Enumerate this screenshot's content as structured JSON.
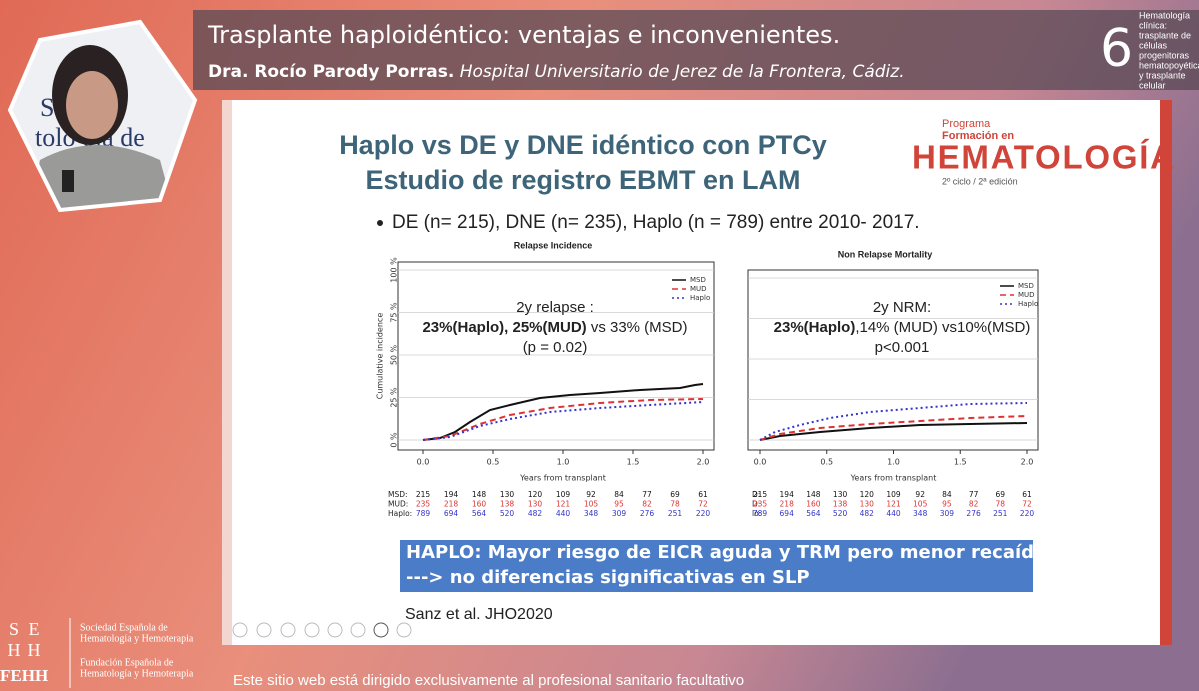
{
  "header": {
    "title": "Trasplante haploidéntico: ventajas e inconvenientes.",
    "speaker": "Dra. Rocío Parody Porras.",
    "affiliation": "Hospital Universitario de Jerez de la Frontera, Cádiz.",
    "badge_number": "6",
    "badge_text": [
      "Hematología",
      "clínica:",
      "trasplante de",
      "células",
      "progenitoras",
      "hematopoyéticas",
      "y trasplante",
      "celular"
    ]
  },
  "slide": {
    "title": [
      "Haplo vs DE y DNE idéntico con PTCy",
      "Estudio de registro EBMT en LAM"
    ],
    "logo": {
      "line1": "Programa",
      "line2": "Formación en",
      "brand": "HEMATOLOGÍA",
      "edition": "2º ciclo / 2ª edición"
    },
    "bullet": "DE (n= 215), DNE (n= 235),  Haplo (n = 789) entre 2010- 2017.",
    "panels": [
      {
        "title": "Relapse Incidence",
        "ylabel": "Cumulative incidence",
        "xlabel": "Years from transplant",
        "yticks": [
          "0 %",
          "25 %",
          "50 %",
          "75 %",
          "100 %"
        ],
        "xticks": [
          "0.0",
          "0.5",
          "1.0",
          "1.5",
          "2.0"
        ],
        "legend": [
          "MSD",
          "MUD",
          "Haplo"
        ],
        "annotation": {
          "line1": "2y relapse :",
          "bold": "23%(Haplo), 25%(MUD)",
          "rest": " vs 33% (MSD)",
          "line3": "(p = 0.02)"
        },
        "risk_table": [
          {
            "label": "MSD:",
            "values": [
              215,
              194,
              148,
              130,
              120,
              109,
              92,
              84,
              77,
              69,
              61
            ]
          },
          {
            "label": "MUD:",
            "values": [
              235,
              218,
              160,
              138,
              130,
              121,
              105,
              95,
              82,
              78,
              72
            ]
          },
          {
            "label": "Haplo:",
            "values": [
              789,
              694,
              564,
              520,
              482,
              440,
              348,
              309,
              276,
              251,
              220
            ]
          }
        ]
      },
      {
        "title": "Non Relapse Mortality",
        "xlabel": "Years from transplant",
        "xticks": [
          "0.0",
          "0.5",
          "1.0",
          "1.5",
          "2.0"
        ],
        "legend": [
          "MSD",
          "MUD",
          "Haplo"
        ],
        "annotation": {
          "line1": "2y NRM:",
          "bold": "23%(Haplo)",
          "rest": ",14% (MUD) vs10%(MSD)",
          "line3": "p<0.001"
        },
        "risk_table": [
          {
            "label": "D:",
            "values": [
              215,
              194,
              148,
              130,
              120,
              109,
              92,
              84,
              77,
              69,
              61
            ]
          },
          {
            "label": "D:",
            "values": [
              235,
              218,
              160,
              138,
              130,
              121,
              105,
              95,
              82,
              78,
              72
            ]
          },
          {
            "label": "lo:",
            "values": [
              789,
              694,
              564,
              520,
              482,
              440,
              348,
              309,
              276,
              251,
              220
            ]
          }
        ]
      }
    ],
    "conclusion": [
      "HAPLO: Mayor riesgo de EICR  aguda y TRM pero menor recaída",
      "---> no diferencias significativas en SLP"
    ],
    "reference": "Sanz et al. JHO2020"
  },
  "footer": {
    "logo_letters": [
      "S",
      "E",
      "H",
      "H"
    ],
    "logo_short": "FEHH",
    "society": [
      "Sociedad Española de",
      "Hematología y Hemoterapia"
    ],
    "foundation": [
      "Fundación Española de",
      "Hematología y Hemoterapia"
    ],
    "disclaimer": "Este sitio web está dirigido exclusivamente al profesional sanitario facultativo"
  }
}
